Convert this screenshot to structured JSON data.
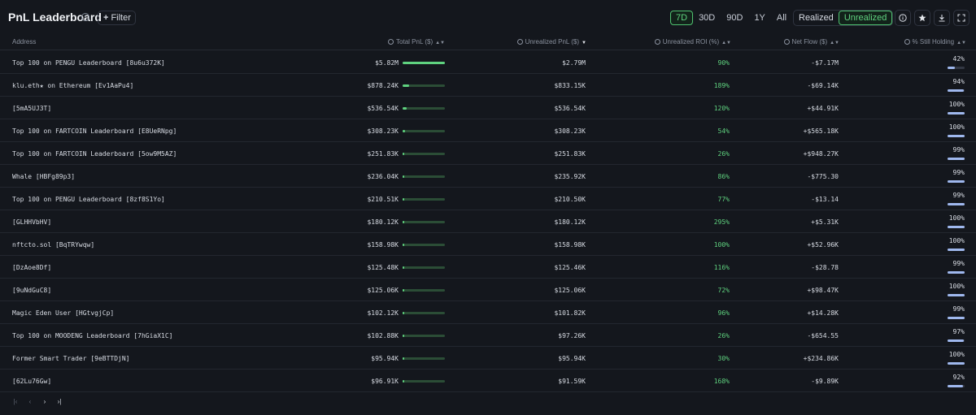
{
  "header": {
    "title": "PnL Leaderboard",
    "filter_label": "Filter",
    "ranges": [
      "7D",
      "30D",
      "90D",
      "1Y",
      "All"
    ],
    "active_range": "7D",
    "modes": [
      "Realized",
      "Unrealized"
    ],
    "active_mode": "Unrealized"
  },
  "columns": {
    "address": "Address",
    "total_pnl": "Total PnL ($)",
    "unrealized_pnl": "Unrealized PnL ($)",
    "unrealized_roi": "Unrealized ROI (%)",
    "net_flow": "Net Flow ($)",
    "still_holding": "% Still Holding"
  },
  "rows": [
    {
      "address": "Top 100 on PENGU Leaderboard [8u6u372K]",
      "total_pnl": "$5.82M",
      "total_pnl_share": 1.0,
      "unrealized_pnl": "$2.79M",
      "roi": "90%",
      "net_flow": "-$7.17M",
      "holding": "42%",
      "holding_pct": 0.42
    },
    {
      "address": "klu.eth★ on Ethereum [Ev1AaPu4]",
      "total_pnl": "$878.24K",
      "total_pnl_share": 0.151,
      "unrealized_pnl": "$833.15K",
      "roi": "189%",
      "net_flow": "-$69.14K",
      "holding": "94%",
      "holding_pct": 0.94
    },
    {
      "address": "[5mA5UJ3T]",
      "total_pnl": "$536.54K",
      "total_pnl_share": 0.092,
      "unrealized_pnl": "$536.54K",
      "roi": "120%",
      "net_flow": "+$44.91K",
      "holding": "100%",
      "holding_pct": 1.0
    },
    {
      "address": "Top 100 on FARTCOIN Leaderboard [E8UeRNpg]",
      "total_pnl": "$308.23K",
      "total_pnl_share": 0.053,
      "unrealized_pnl": "$308.23K",
      "roi": "54%",
      "net_flow": "+$565.18K",
      "holding": "100%",
      "holding_pct": 1.0
    },
    {
      "address": "Top 100 on FARTCOIN Leaderboard [5ow9M5AZ]",
      "total_pnl": "$251.83K",
      "total_pnl_share": 0.043,
      "unrealized_pnl": "$251.83K",
      "roi": "26%",
      "net_flow": "+$948.27K",
      "holding": "99%",
      "holding_pct": 0.99
    },
    {
      "address": "Whale [HBFg89p3]",
      "total_pnl": "$236.04K",
      "total_pnl_share": 0.041,
      "unrealized_pnl": "$235.92K",
      "roi": "86%",
      "net_flow": "-$775.30",
      "holding": "99%",
      "holding_pct": 0.99
    },
    {
      "address": "Top 100 on PENGU Leaderboard [8zf8S1Yo]",
      "total_pnl": "$210.51K",
      "total_pnl_share": 0.036,
      "unrealized_pnl": "$210.50K",
      "roi": "77%",
      "net_flow": "-$13.14",
      "holding": "99%",
      "holding_pct": 0.99
    },
    {
      "address": "[GLHHVbHV]",
      "total_pnl": "$180.12K",
      "total_pnl_share": 0.031,
      "unrealized_pnl": "$180.12K",
      "roi": "295%",
      "net_flow": "+$5.31K",
      "holding": "100%",
      "holding_pct": 1.0
    },
    {
      "address": "nftcto.sol [BqTRYwqw]",
      "total_pnl": "$158.98K",
      "total_pnl_share": 0.027,
      "unrealized_pnl": "$158.98K",
      "roi": "100%",
      "net_flow": "+$52.96K",
      "holding": "100%",
      "holding_pct": 1.0
    },
    {
      "address": "[DzAoe8Df]",
      "total_pnl": "$125.48K",
      "total_pnl_share": 0.022,
      "unrealized_pnl": "$125.46K",
      "roi": "116%",
      "net_flow": "-$28.78",
      "holding": "99%",
      "holding_pct": 0.99
    },
    {
      "address": "[9uNdGuC8]",
      "total_pnl": "$125.06K",
      "total_pnl_share": 0.021,
      "unrealized_pnl": "$125.06K",
      "roi": "72%",
      "net_flow": "+$98.47K",
      "holding": "100%",
      "holding_pct": 1.0
    },
    {
      "address": "Magic Eden User [HGtvgjCp]",
      "total_pnl": "$102.12K",
      "total_pnl_share": 0.018,
      "unrealized_pnl": "$101.82K",
      "roi": "96%",
      "net_flow": "+$14.28K",
      "holding": "99%",
      "holding_pct": 0.99
    },
    {
      "address": "Top 100 on MOODENG Leaderboard [7hGiaX1C]",
      "total_pnl": "$102.88K",
      "total_pnl_share": 0.018,
      "unrealized_pnl": "$97.26K",
      "roi": "26%",
      "net_flow": "-$654.55",
      "holding": "97%",
      "holding_pct": 0.97
    },
    {
      "address": "Former Smart Trader [9eBTTDjN]",
      "total_pnl": "$95.94K",
      "total_pnl_share": 0.016,
      "unrealized_pnl": "$95.94K",
      "roi": "30%",
      "net_flow": "+$234.86K",
      "holding": "100%",
      "holding_pct": 1.0
    },
    {
      "address": "[62Lu76Gw]",
      "total_pnl": "$96.91K",
      "total_pnl_share": 0.017,
      "unrealized_pnl": "$91.59K",
      "roi": "168%",
      "net_flow": "-$9.89K",
      "holding": "92%",
      "holding_pct": 0.92
    }
  ],
  "icons": {
    "title_info": "info-icon",
    "filter": "plus-icon",
    "tools": [
      "info-icon",
      "star-icon",
      "download-icon",
      "fullscreen-icon"
    ],
    "pager": [
      "first-page-icon",
      "prev-page-icon",
      "next-page-icon",
      "last-page-icon"
    ]
  },
  "colors": {
    "background": "#14171d",
    "positive_green": "#5fd27f",
    "holding_bar": "#9fb8ee"
  }
}
